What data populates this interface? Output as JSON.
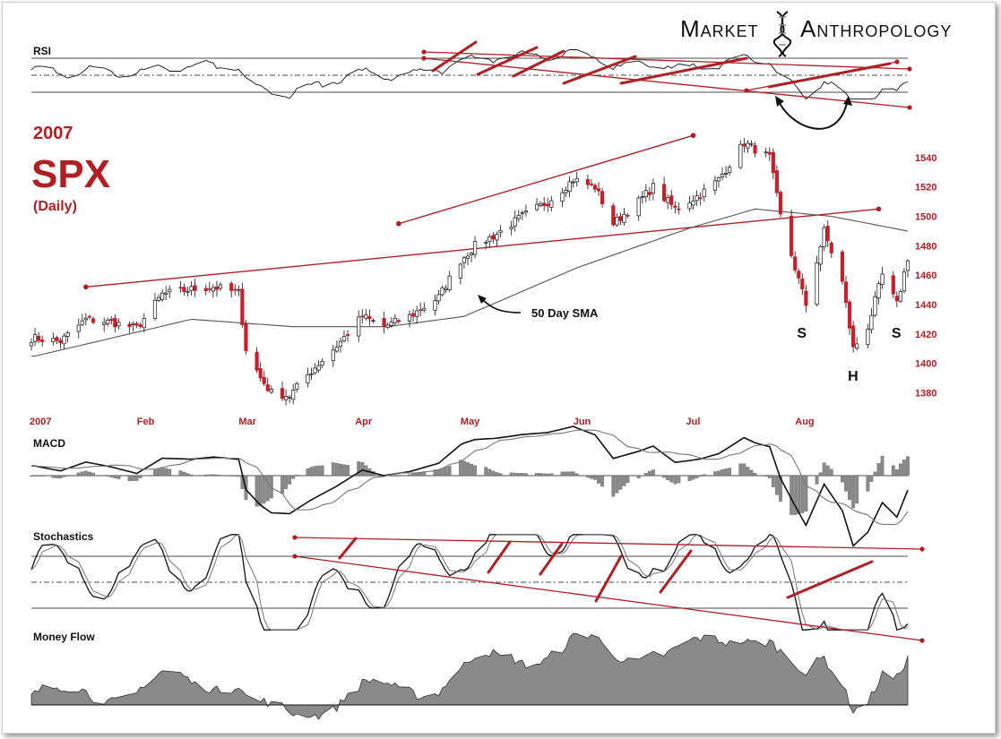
{
  "brand": {
    "word1": "Market",
    "word2": "Anthropology"
  },
  "headline": {
    "year": "2007",
    "ticker": "SPX",
    "period": "(Daily)"
  },
  "panels": {
    "rsi": "RSI",
    "macd": "MACD",
    "stochastics": "Stochastics",
    "money_flow": "Money Flow"
  },
  "annotations": {
    "sma_label": "50 Day SMA",
    "left_shoulder": "S",
    "head": "H",
    "right_shoulder": "S"
  },
  "colors": {
    "accent": "#b01f24",
    "bull_candle": "#ffffff",
    "bear_candle": "#c8202a",
    "ink": "#111111",
    "histogram": "#8a8a8a"
  },
  "chart_data": {
    "type": "candlestick",
    "title": "SPX",
    "subtitle": "(Daily)",
    "x_axis": {
      "labels": [
        "2007",
        "Feb",
        "Mar",
        "Apr",
        "May",
        "Jun",
        "Jul",
        "Aug"
      ]
    },
    "y_axis": {
      "ticks": [
        1380,
        1400,
        1420,
        1440,
        1460,
        1480,
        1500,
        1520,
        1540
      ],
      "range": [
        1370,
        1560
      ],
      "position": "right"
    },
    "price_close_path": [
      [
        "2007-01-03",
        1417
      ],
      [
        "2007-01-10",
        1415
      ],
      [
        "2007-01-17",
        1430
      ],
      [
        "2007-01-24",
        1428
      ],
      [
        "2007-01-31",
        1424
      ],
      [
        "2007-02-07",
        1447
      ],
      [
        "2007-02-14",
        1450
      ],
      [
        "2007-02-21",
        1452
      ],
      [
        "2007-02-28",
        1448
      ],
      [
        "2007-03-02",
        1410
      ],
      [
        "2007-03-06",
        1390
      ],
      [
        "2007-03-09",
        1380
      ],
      [
        "2007-03-14",
        1378
      ],
      [
        "2007-03-20",
        1395
      ],
      [
        "2007-03-27",
        1412
      ],
      [
        "2007-04-03",
        1432
      ],
      [
        "2007-04-09",
        1425
      ],
      [
        "2007-04-16",
        1432
      ],
      [
        "2007-04-24",
        1445
      ],
      [
        "2007-04-30",
        1470
      ],
      [
        "2007-05-04",
        1480
      ],
      [
        "2007-05-10",
        1488
      ],
      [
        "2007-05-17",
        1500
      ],
      [
        "2007-05-24",
        1510
      ],
      [
        "2007-05-31",
        1525
      ],
      [
        "2007-06-06",
        1520
      ],
      [
        "2007-06-11",
        1495
      ],
      [
        "2007-06-18",
        1510
      ],
      [
        "2007-06-22",
        1520
      ],
      [
        "2007-06-28",
        1505
      ],
      [
        "2007-07-05",
        1515
      ],
      [
        "2007-07-10",
        1525
      ],
      [
        "2007-07-17",
        1550
      ],
      [
        "2007-07-24",
        1540
      ],
      [
        "2007-07-27",
        1500
      ],
      [
        "2007-07-31",
        1465
      ],
      [
        "2007-08-03",
        1440
      ],
      [
        "2007-08-08",
        1490
      ],
      [
        "2007-08-13",
        1455
      ],
      [
        "2007-08-16",
        1410
      ],
      [
        "2007-08-20",
        1425
      ],
      [
        "2007-08-24",
        1460
      ],
      [
        "2007-08-28",
        1440
      ],
      [
        "2007-08-31",
        1472
      ]
    ],
    "sma_50_path": [
      [
        "2007-01-03",
        1405
      ],
      [
        "2007-02-15",
        1430
      ],
      [
        "2007-03-15",
        1425
      ],
      [
        "2007-04-10",
        1425
      ],
      [
        "2007-05-01",
        1432
      ],
      [
        "2007-06-01",
        1465
      ],
      [
        "2007-07-02",
        1492
      ],
      [
        "2007-07-20",
        1505
      ],
      [
        "2007-08-10",
        1500
      ],
      [
        "2007-08-31",
        1490
      ]
    ],
    "price_trendlines": [
      {
        "from": [
          "2007-01-17",
          1452
        ],
        "to": [
          "2007-08-23",
          1505
        ]
      },
      {
        "from": [
          "2007-04-13",
          1495
        ],
        "to": [
          "2007-07-03",
          1555
        ]
      }
    ],
    "patterns": [
      {
        "label": "S",
        "date": "2007-08-02",
        "price": 1432
      },
      {
        "label": "H",
        "date": "2007-08-16",
        "price": 1403
      },
      {
        "label": "S",
        "date": "2007-08-28",
        "price": 1432
      }
    ],
    "indicators": [
      "RSI",
      "MACD",
      "Stochastics",
      "Money Flow"
    ],
    "grid": false,
    "legend": "none"
  }
}
